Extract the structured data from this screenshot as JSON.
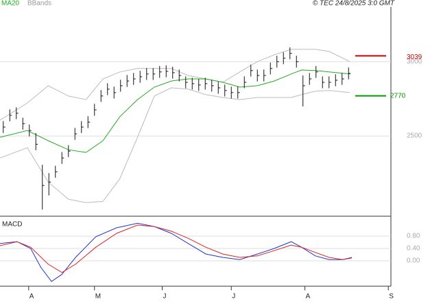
{
  "chart_data": [
    {
      "type": "ohlc",
      "source": "© TEC 24/8/2025 3:0 GMT",
      "xlim": [
        -0.5,
        59.5
      ],
      "xticks": [
        {
          "value": 3.9,
          "label": "A"
        },
        {
          "value": 14,
          "label": "M"
        },
        {
          "value": 24.4,
          "label": "J"
        },
        {
          "value": 35,
          "label": "J"
        },
        {
          "value": 46.3,
          "label": "A"
        },
        {
          "value": 59.1,
          "label": "S"
        }
      ],
      "ylim": [
        1960,
        3415
      ],
      "yticks": [
        2500,
        3000
      ],
      "grid": true,
      "color": "#111111",
      "high": [
        2600,
        2679,
        2693,
        2623,
        2577,
        2520,
        2306,
        2250,
        2299,
        2392,
        2438,
        2554,
        2600,
        2633,
        2716,
        2809,
        2855,
        2832,
        2878,
        2910,
        2924,
        2938,
        2957,
        2957,
        2971,
        2975,
        2966,
        2947,
        2901,
        2892,
        2883,
        2892,
        2878,
        2864,
        2846,
        2832,
        2832,
        2901,
        2980,
        2947,
        2947,
        2994,
        3040,
        3063,
        3096,
        3040,
        2907,
        2924,
        2971,
        2901,
        2901,
        2915,
        2924,
        2961
      ],
      "low": [
        2520,
        2599,
        2613,
        2543,
        2497,
        2404,
        2005,
        2100,
        2219,
        2312,
        2358,
        2474,
        2520,
        2553,
        2636,
        2729,
        2775,
        2752,
        2798,
        2830,
        2844,
        2858,
        2877,
        2877,
        2891,
        2895,
        2886,
        2867,
        2821,
        2812,
        2803,
        2812,
        2798,
        2784,
        2766,
        2752,
        2752,
        2821,
        2900,
        2867,
        2867,
        2914,
        2960,
        2983,
        3016,
        2960,
        2699,
        2844,
        2891,
        2821,
        2821,
        2835,
        2844,
        2881
      ],
      "close": [
        2560,
        2639,
        2653,
        2583,
        2537,
        2444,
        2167,
        2190,
        2259,
        2352,
        2398,
        2514,
        2560,
        2593,
        2676,
        2769,
        2815,
        2792,
        2838,
        2870,
        2884,
        2898,
        2917,
        2917,
        2931,
        2935,
        2926,
        2907,
        2861,
        2852,
        2843,
        2852,
        2838,
        2824,
        2806,
        2792,
        2792,
        2861,
        2940,
        2907,
        2907,
        2954,
        3000,
        3023,
        3056,
        3000,
        2838,
        2884,
        2931,
        2861,
        2861,
        2875,
        2884,
        2921
      ],
      "series": [
        {
          "name": "MA20",
          "color": "#22aa22",
          "x": [
            -0.5,
            3.7,
            6.9,
            10.0,
            12.7,
            15.3,
            17.9,
            20.6,
            23.2,
            25.8,
            28.4,
            31.1,
            33.7,
            36.3,
            39.0,
            41.6,
            44.2,
            45.8,
            47.9,
            50.0,
            53.2
          ],
          "values": [
            2491,
            2537,
            2468,
            2407,
            2389,
            2468,
            2630,
            2745,
            2829,
            2870,
            2884,
            2884,
            2861,
            2829,
            2838,
            2870,
            2917,
            2944,
            2940,
            2931,
            2917
          ]
        }
      ],
      "bands": {
        "name": "BBands",
        "color": "#bbbbbb",
        "x": [
          -0.5,
          3.7,
          6.9,
          10.0,
          12.7,
          15.3,
          17.9,
          20.6,
          23.2,
          25.8,
          28.4,
          31.1,
          33.7,
          36.3,
          39.0,
          41.6,
          44.2,
          45.8,
          47.9,
          50.0,
          53.2
        ],
        "upper": [
          2606,
          2722,
          2838,
          2769,
          2745,
          2884,
          2931,
          2954,
          2954,
          2954,
          2907,
          2884,
          2861,
          2931,
          3000,
          3046,
          3083,
          3083,
          3083,
          3069,
          3000
        ],
        "lower": [
          2352,
          2421,
          2190,
          2074,
          2051,
          2060,
          2213,
          2491,
          2769,
          2824,
          2815,
          2778,
          2759,
          2745,
          2759,
          2759,
          2759,
          2778,
          2801,
          2806,
          2792
        ]
      },
      "levels": [
        {
          "value": 3039,
          "color": "#cc0000"
        },
        {
          "value": 2770,
          "color": "#009900"
        }
      ]
    },
    {
      "type": "line",
      "title": "MACD",
      "ylim": [
        -0.78,
        1.38
      ],
      "yticks": [
        {
          "value": 0,
          "label": "0.00"
        },
        {
          "value": 0.4,
          "label": "0.40"
        },
        {
          "value": 0.8,
          "label": "0.80"
        }
      ],
      "grid": true,
      "series": [
        {
          "color": "#2233cc",
          "x": [
            -0.5,
            2.1,
            4.2,
            5.8,
            7.4,
            9.0,
            11.1,
            14.2,
            17.4,
            20.6,
            23.2,
            25.8,
            28.4,
            31.1,
            33.7,
            36.3,
            39.0,
            41.6,
            44.2,
            45.8,
            47.9,
            50.0,
            52.1,
            53.5
          ],
          "values": [
            0.56,
            0.62,
            0.4,
            -0.22,
            -0.67,
            -0.44,
            0.11,
            0.78,
            1.07,
            1.22,
            1.11,
            0.89,
            0.56,
            0.22,
            0.11,
            0.04,
            0.22,
            0.4,
            0.62,
            0.44,
            0.16,
            0.04,
            0.04,
            0.11
          ]
        },
        {
          "color": "#dd2222",
          "x": [
            -0.5,
            2.1,
            4.2,
            6.9,
            9.0,
            11.1,
            14.2,
            17.4,
            20.6,
            23.2,
            25.8,
            28.4,
            31.1,
            33.7,
            36.3,
            39.0,
            41.6,
            44.2,
            45.8,
            47.9,
            50.0,
            52.1,
            53.5
          ],
          "values": [
            0.49,
            0.62,
            0.44,
            -0.11,
            -0.38,
            -0.11,
            0.44,
            0.89,
            1.16,
            1.11,
            0.96,
            0.73,
            0.44,
            0.22,
            0.11,
            0.16,
            0.33,
            0.51,
            0.44,
            0.27,
            0.11,
            0.04,
            0.09
          ]
        }
      ]
    }
  ]
}
